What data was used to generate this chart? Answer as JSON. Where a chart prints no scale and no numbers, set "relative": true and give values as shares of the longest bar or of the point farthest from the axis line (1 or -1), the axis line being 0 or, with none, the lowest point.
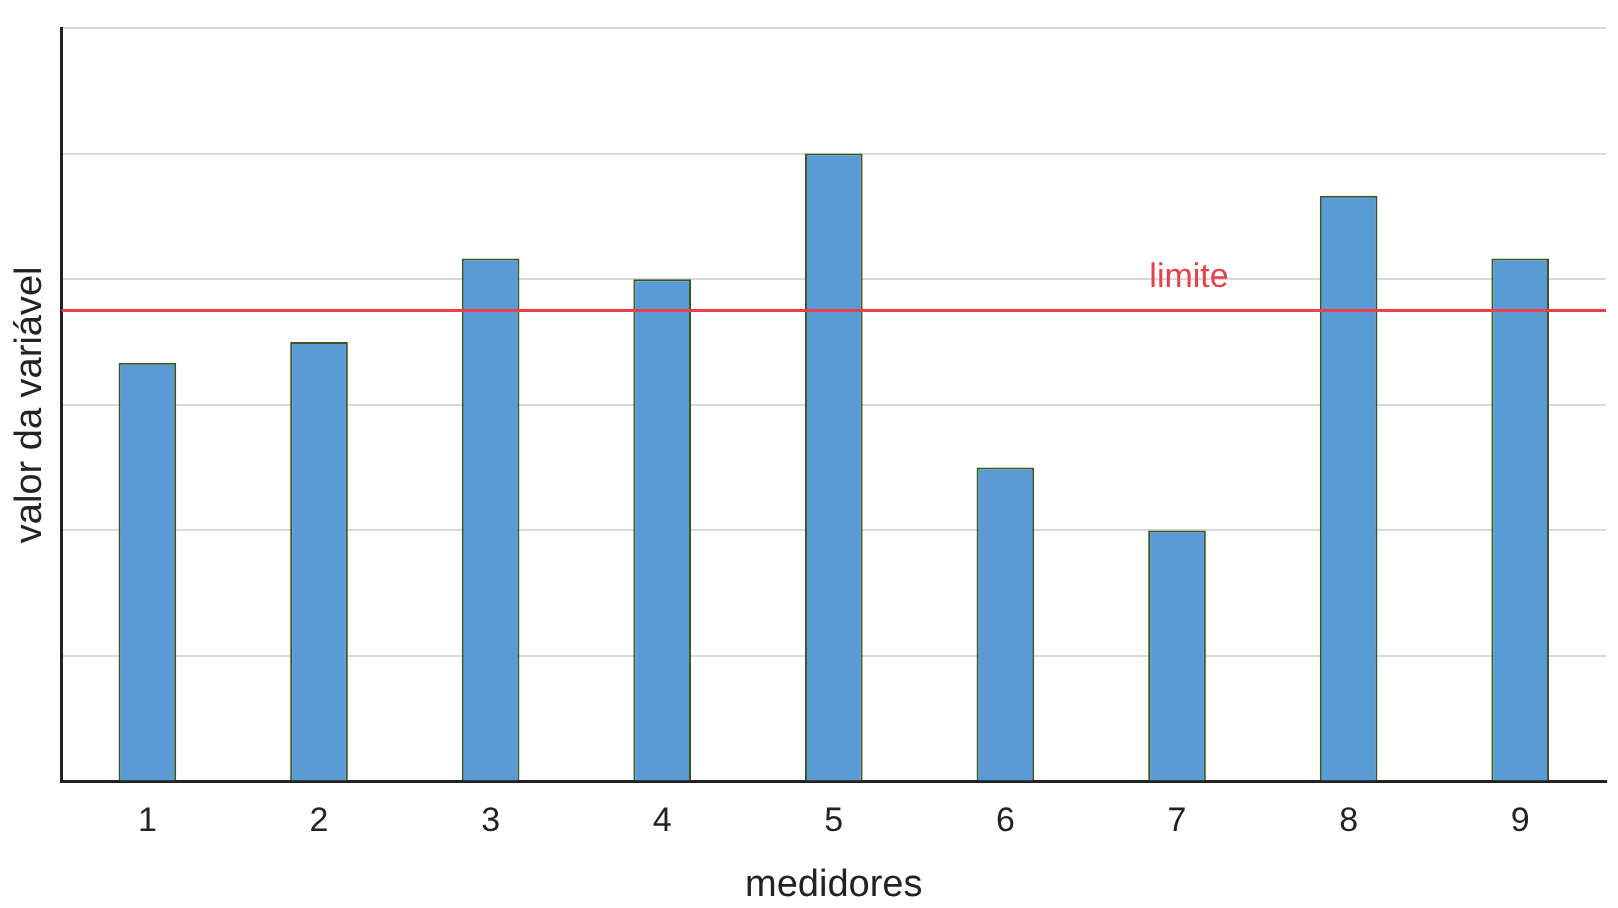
{
  "chart_data": {
    "type": "bar",
    "relative": true,
    "xlabel": "medidores",
    "ylabel": "valor da variável",
    "categories": [
      "1",
      "2",
      "3",
      "4",
      "5",
      "6",
      "7",
      "8",
      "9"
    ],
    "values": [
      0.667,
      0.7,
      0.833,
      0.8,
      1,
      0.5,
      0.4,
      0.933,
      0.833
    ],
    "color": "#5b9bd5",
    "grid": "y",
    "legend": false,
    "ref_lines": [
      {
        "axis": "y",
        "value": 0.75,
        "label": "limite",
        "color": "#e8414b"
      }
    ]
  }
}
